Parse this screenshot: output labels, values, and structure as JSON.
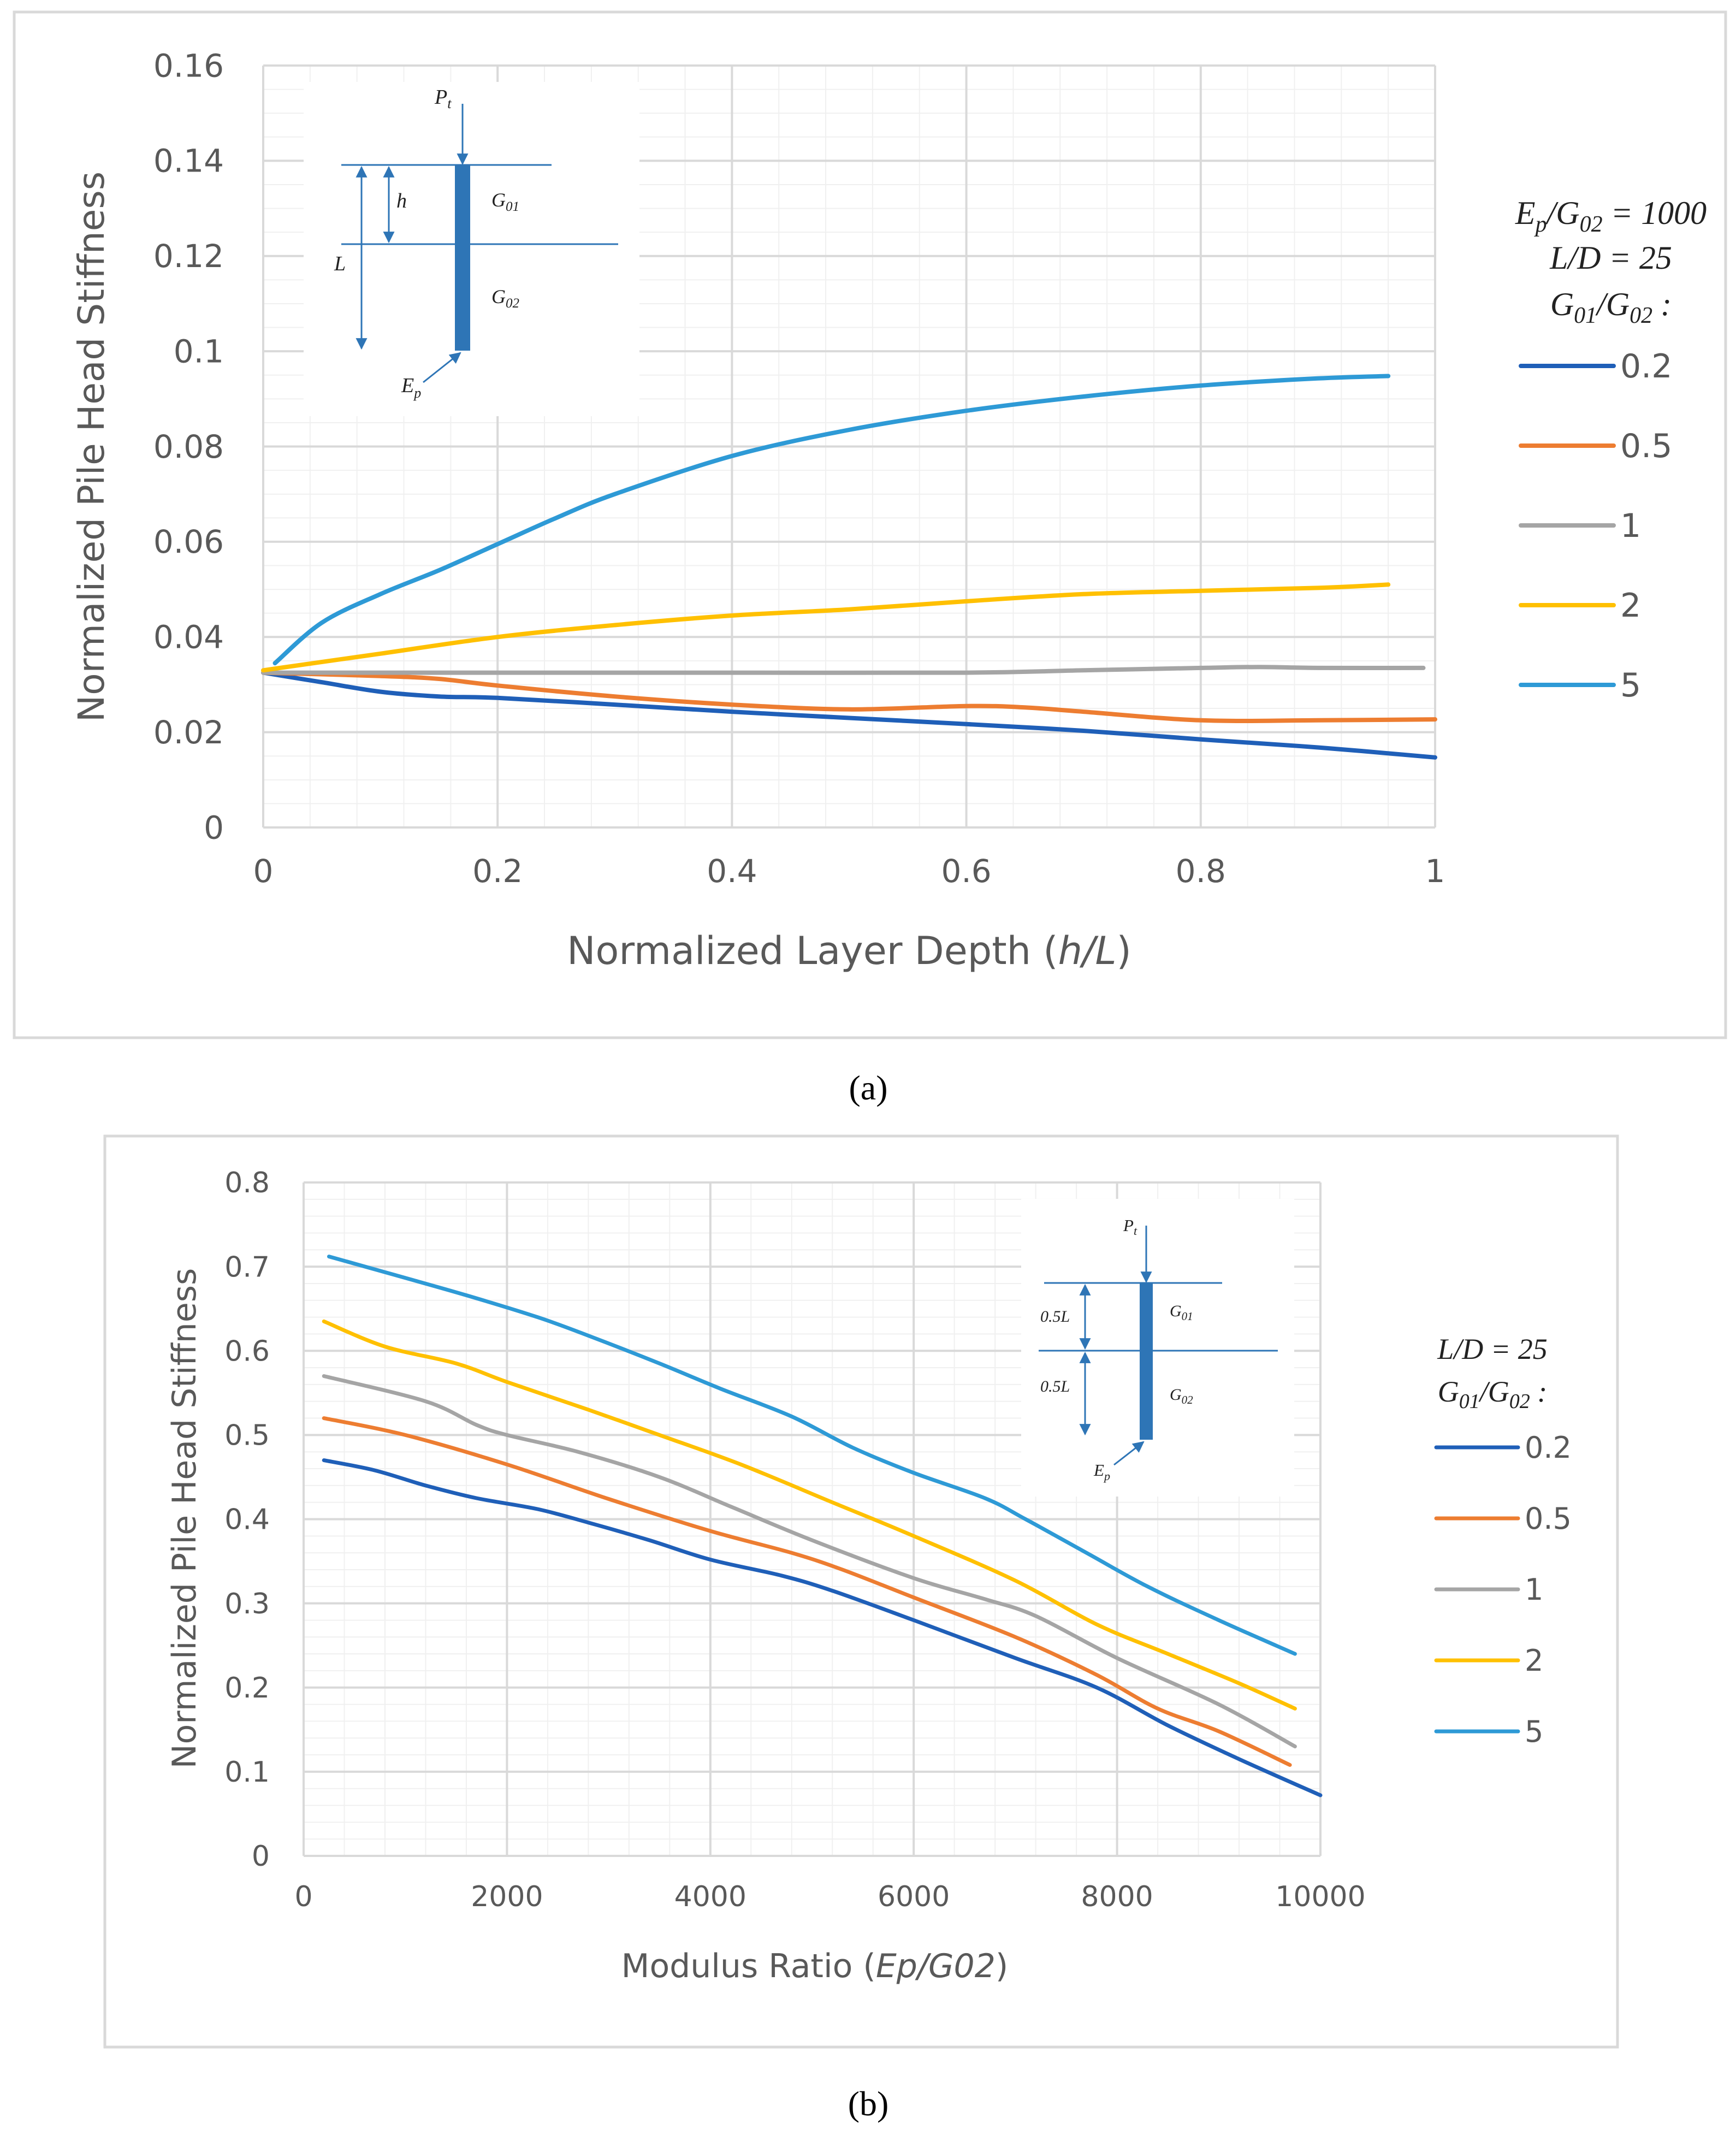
{
  "chart_data": [
    {
      "type": "line",
      "panel_label": "(a)",
      "title": "",
      "xlabel_prefix": "Normalized Layer Depth (",
      "xlabel_italic": "h/L",
      "xlabel_suffix": ")",
      "ylabel": "Normalized Pile Head Stiffness",
      "xlim": [
        0,
        1
      ],
      "ylim": [
        0,
        0.16
      ],
      "x_ticks": [
        0,
        0.2,
        0.4,
        0.6,
        0.8,
        1
      ],
      "x_tick_labels": [
        "0",
        "0.2",
        "0.4",
        "0.6",
        "0.8",
        "1"
      ],
      "y_ticks": [
        0,
        0.02,
        0.04,
        0.06,
        0.08,
        0.1,
        0.12,
        0.14,
        0.16
      ],
      "y_tick_labels": [
        "0",
        "0.02",
        "0.04",
        "0.06",
        "0.08",
        "0.1",
        "0.12",
        "0.14",
        "0.16"
      ],
      "legend_position": "right",
      "legend_title": {
        "line1_main": "E",
        "line1_sub1": "p",
        "line1_mid": "/G",
        "line1_sub2": "02",
        "line1_end": " = 1000",
        "line2": "L/D = 25",
        "line3_main": "G",
        "line3_sub1": "01",
        "line3_mid": "/G",
        "line3_sub2": "02",
        "line3_end": " :"
      },
      "grid": true,
      "series": [
        {
          "name": "0.2",
          "color": "#1f5fb8",
          "x": [
            0,
            0.05,
            0.1,
            0.15,
            0.2,
            0.3,
            0.4,
            0.5,
            0.6,
            0.7,
            0.8,
            0.9,
            1.0
          ],
          "values": [
            0.0325,
            0.0305,
            0.0285,
            0.0275,
            0.0272,
            0.0258,
            0.0243,
            0.023,
            0.0217,
            0.0203,
            0.0185,
            0.0168,
            0.0147
          ]
        },
        {
          "name": "0.5",
          "color": "#ed7d31",
          "x": [
            0,
            0.1,
            0.15,
            0.2,
            0.3,
            0.4,
            0.5,
            0.6,
            0.65,
            0.7,
            0.8,
            0.9,
            1.0
          ],
          "values": [
            0.0325,
            0.0318,
            0.0312,
            0.0298,
            0.0275,
            0.0258,
            0.0248,
            0.0255,
            0.0252,
            0.0243,
            0.0225,
            0.0225,
            0.0227
          ]
        },
        {
          "name": "1",
          "color": "#a5a5a5",
          "x": [
            0,
            0.2,
            0.4,
            0.6,
            0.7,
            0.8,
            0.85,
            0.9,
            0.99
          ],
          "values": [
            0.0325,
            0.0325,
            0.0325,
            0.0325,
            0.033,
            0.0335,
            0.0337,
            0.0335,
            0.0335
          ]
        },
        {
          "name": "2",
          "color": "#ffc000",
          "x": [
            0,
            0.1,
            0.2,
            0.3,
            0.4,
            0.5,
            0.6,
            0.7,
            0.8,
            0.9,
            0.96
          ],
          "values": [
            0.033,
            0.0365,
            0.04,
            0.0425,
            0.0445,
            0.0458,
            0.0475,
            0.049,
            0.0497,
            0.0503,
            0.051
          ]
        },
        {
          "name": "5",
          "color": "#2e9ad6",
          "x": [
            0.01,
            0.05,
            0.1,
            0.15,
            0.2,
            0.25,
            0.3,
            0.4,
            0.5,
            0.6,
            0.7,
            0.8,
            0.9,
            0.96
          ],
          "values": [
            0.0345,
            0.043,
            0.049,
            0.054,
            0.0595,
            0.065,
            0.07,
            0.078,
            0.0835,
            0.0875,
            0.0905,
            0.0928,
            0.0943,
            0.0948
          ]
        }
      ]
    },
    {
      "type": "line",
      "panel_label": "(b)",
      "title": "",
      "xlabel_prefix": "Modulus Ratio (",
      "xlabel_italic": "Ep/G02",
      "xlabel_suffix": ")",
      "ylabel": "Normalized Pile Head Stiffness",
      "xlim": [
        0,
        10000
      ],
      "ylim": [
        0,
        0.8
      ],
      "x_ticks": [
        0,
        2000,
        4000,
        6000,
        8000,
        10000
      ],
      "x_tick_labels": [
        "0",
        "2000",
        "4000",
        "6000",
        "8000",
        "10000"
      ],
      "y_ticks": [
        0,
        0.1,
        0.2,
        0.3,
        0.4,
        0.5,
        0.6,
        0.7,
        0.8
      ],
      "y_tick_labels": [
        "0",
        "0.1",
        "0.2",
        "0.3",
        "0.4",
        "0.5",
        "0.6",
        "0.7",
        "0.8"
      ],
      "legend_position": "right",
      "legend_title": {
        "line1": "L/D = 25",
        "line2_main": "G",
        "line2_sub1": "01",
        "line2_mid": "/G",
        "line2_sub2": "02",
        "line2_end": " :"
      },
      "grid": true,
      "series": [
        {
          "name": "0.2",
          "color": "#1f5fb8",
          "x": [
            200,
            700,
            1200,
            1700,
            2300,
            2800,
            3400,
            4000,
            4700,
            5200,
            6000,
            7000,
            7800,
            8500,
            9200,
            10000
          ],
          "values": [
            0.47,
            0.458,
            0.44,
            0.425,
            0.412,
            0.396,
            0.375,
            0.352,
            0.333,
            0.315,
            0.28,
            0.235,
            0.2,
            0.155,
            0.115,
            0.072
          ]
        },
        {
          "name": "0.5",
          "color": "#ed7d31",
          "x": [
            200,
            1000,
            2000,
            3000,
            4000,
            4800,
            5300,
            6000,
            7000,
            7800,
            8400,
            9000,
            9700
          ],
          "values": [
            0.52,
            0.5,
            0.465,
            0.424,
            0.386,
            0.36,
            0.34,
            0.307,
            0.26,
            0.215,
            0.175,
            0.148,
            0.108
          ]
        },
        {
          "name": "1",
          "color": "#a5a5a5",
          "x": [
            200,
            1200,
            1700,
            2000,
            2700,
            3500,
            4200,
            5000,
            6000,
            6700,
            7200,
            8000,
            9000,
            9750
          ],
          "values": [
            0.57,
            0.54,
            0.512,
            0.5,
            0.48,
            0.45,
            0.415,
            0.375,
            0.33,
            0.305,
            0.285,
            0.235,
            0.18,
            0.13
          ]
        },
        {
          "name": "2",
          "color": "#ffc000",
          "x": [
            200,
            800,
            1500,
            2000,
            2800,
            3500,
            4300,
            5200,
            6000,
            7000,
            7800,
            8500,
            9200,
            9750
          ],
          "values": [
            0.635,
            0.605,
            0.585,
            0.563,
            0.53,
            0.5,
            0.465,
            0.42,
            0.38,
            0.327,
            0.275,
            0.24,
            0.205,
            0.175
          ]
        },
        {
          "name": "5",
          "color": "#2e9ad6",
          "x": [
            250,
            900,
            1600,
            2300,
            2800,
            3500,
            4100,
            4800,
            5400,
            6000,
            6700,
            7100,
            7700,
            8300,
            9000,
            9750
          ],
          "values": [
            0.712,
            0.69,
            0.666,
            0.64,
            0.618,
            0.585,
            0.555,
            0.522,
            0.485,
            0.455,
            0.425,
            0.4,
            0.36,
            0.32,
            0.28,
            0.24
          ]
        }
      ]
    }
  ],
  "insets": [
    {
      "load": "P",
      "load_sub": "t",
      "depth": "h",
      "length": "L",
      "g1": "G",
      "g1_sub": "01",
      "g2": "G",
      "g2_sub": "02",
      "pile": "E",
      "pile_sub": "p"
    },
    {
      "load": "P",
      "load_sub": "t",
      "upper": "0.5L",
      "lower": "0.5L",
      "g1": "G",
      "g1_sub": "01",
      "g2": "G",
      "g2_sub": "02",
      "pile": "E",
      "pile_sub": "p"
    }
  ]
}
